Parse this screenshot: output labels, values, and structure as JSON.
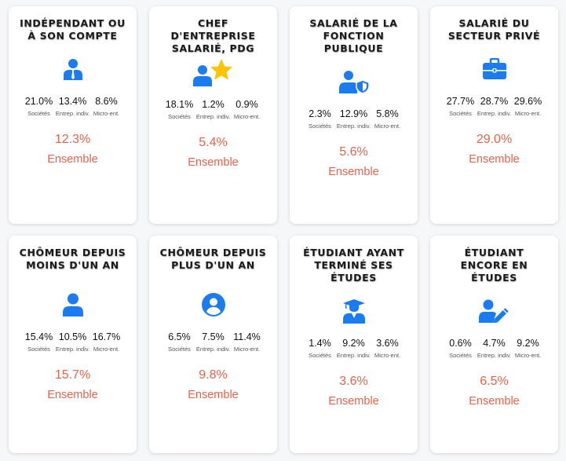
{
  "colors": {
    "accent": "#e8634a",
    "icon": "#1a7cf0",
    "star": "#ffc400"
  },
  "cards": [
    {
      "title": "INDÉPENDANT OU\nÀ SON COMPTE",
      "icon": "user-tie-icon",
      "stats": [
        {
          "value": "21.0%",
          "label": "Sociétés"
        },
        {
          "value": "13.4%",
          "label": "Entrep. indiv."
        },
        {
          "value": "8.6%",
          "label": "Micro-ent."
        }
      ],
      "total": "12.3%",
      "total_label": "Ensemble"
    },
    {
      "title": "CHEF\nD'ENTREPRISE\nSALARIÉ, PDG",
      "icon": "user-star-icon",
      "stats": [
        {
          "value": "18.1%",
          "label": "Sociétés"
        },
        {
          "value": "1.2%",
          "label": "Entrep. indiv."
        },
        {
          "value": "0.9%",
          "label": "Micro-ent."
        }
      ],
      "total": "5.4%",
      "total_label": "Ensemble"
    },
    {
      "title": "SALARIÉ DE LA\nFONCTION\nPUBLIQUE",
      "icon": "user-shield-icon",
      "stats": [
        {
          "value": "2.3%",
          "label": "Sociétés"
        },
        {
          "value": "12.9%",
          "label": "Entrep. indiv."
        },
        {
          "value": "5.8%",
          "label": "Micro-ent."
        }
      ],
      "total": "5.6%",
      "total_label": "Ensemble"
    },
    {
      "title": "SALARIÉ DU\nSECTEUR PRIVÉ",
      "icon": "briefcase-icon",
      "stats": [
        {
          "value": "27.7%",
          "label": "Sociétés"
        },
        {
          "value": "28.7%",
          "label": "Entrep. indiv."
        },
        {
          "value": "29.6%",
          "label": "Micro-ent."
        }
      ],
      "total": "29.0%",
      "total_label": "Ensemble"
    },
    {
      "title": "CHÔMEUR DEPUIS\nMOINS D'UN AN",
      "icon": "user-icon",
      "stats": [
        {
          "value": "15.4%",
          "label": "Sociétés"
        },
        {
          "value": "10.5%",
          "label": "Entrep. indiv."
        },
        {
          "value": "16.7%",
          "label": "Micro-ent."
        }
      ],
      "total": "15.7%",
      "total_label": "Ensemble"
    },
    {
      "title": "CHÔMEUR DEPUIS\nPLUS D'UN AN",
      "icon": "user-circle-icon",
      "stats": [
        {
          "value": "6.5%",
          "label": "Sociétés"
        },
        {
          "value": "7.5%",
          "label": "Entrep. indiv."
        },
        {
          "value": "11.4%",
          "label": "Micro-ent."
        }
      ],
      "total": "9.8%",
      "total_label": "Ensemble"
    },
    {
      "title": "ÉTUDIANT AYANT\nTERMINÉ SES\nÉTUDES",
      "icon": "user-graduate-icon",
      "stats": [
        {
          "value": "1.4%",
          "label": "Sociétés"
        },
        {
          "value": "9.2%",
          "label": "Entrep. indiv."
        },
        {
          "value": "3.6%",
          "label": "Micro-ent."
        }
      ],
      "total": "3.6%",
      "total_label": "Ensemble"
    },
    {
      "title": "ÉTUDIANT\nENCORE EN\nÉTUDES",
      "icon": "user-pen-icon",
      "stats": [
        {
          "value": "0.6%",
          "label": "Sociétés"
        },
        {
          "value": "4.7%",
          "label": "Entrep. indiv."
        },
        {
          "value": "9.2%",
          "label": "Micro-ent."
        }
      ],
      "total": "6.5%",
      "total_label": "Ensemble"
    }
  ]
}
